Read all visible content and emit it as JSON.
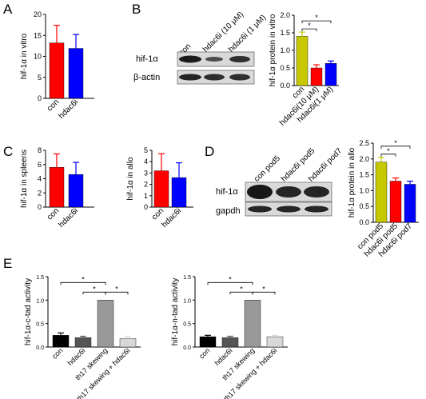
{
  "panels": {
    "A": "A",
    "B": "B",
    "C": "C",
    "D": "D",
    "E": "E"
  },
  "chart_data": [
    {
      "id": "A",
      "type": "bar",
      "categories": [
        "con",
        "hdac6i"
      ],
      "values": [
        13.2,
        11.9
      ],
      "errors": [
        4.2,
        3.3
      ],
      "ylabel": "hif-1α in vitro",
      "ylim": [
        0,
        20
      ],
      "yticks": [
        "0",
        "5",
        "10",
        "15",
        "20"
      ],
      "colors": [
        "#ff0000",
        "#0000ff"
      ]
    },
    {
      "id": "B",
      "type": "bar",
      "categories": [
        "con",
        "hdac6i(10 μM)",
        "hdac6i(1 μM)"
      ],
      "values": [
        1.4,
        0.5,
        0.63
      ],
      "errors": [
        0.12,
        0.09,
        0.07
      ],
      "ylabel": "hif-1α protein in vitro",
      "ylim": [
        0,
        2.0
      ],
      "yticks": [
        "0.0",
        "0.5",
        "1.0",
        "1.5",
        "2.0"
      ],
      "colors": [
        "#c8c800",
        "#ff0000",
        "#0000ff"
      ],
      "significance": [
        "*",
        "*"
      ]
    },
    {
      "id": "C1",
      "type": "bar",
      "categories": [
        "con",
        "hdac6i"
      ],
      "values": [
        5.6,
        4.6
      ],
      "errors": [
        1.9,
        1.7
      ],
      "ylabel": "hif-1α in spleens",
      "ylim": [
        0,
        8
      ],
      "yticks": [
        "0",
        "2",
        "4",
        "6",
        "8"
      ],
      "colors": [
        "#ff0000",
        "#0000ff"
      ]
    },
    {
      "id": "C2",
      "type": "bar",
      "categories": [
        "con",
        "hdac6i"
      ],
      "values": [
        3.2,
        2.6
      ],
      "errors": [
        1.5,
        1.3
      ],
      "ylabel": "hif-1α in allo",
      "ylim": [
        0,
        5
      ],
      "yticks": [
        "0",
        "1",
        "2",
        "3",
        "4",
        "5"
      ],
      "colors": [
        "#ff0000",
        "#0000ff"
      ]
    },
    {
      "id": "D",
      "type": "bar",
      "categories": [
        "con pod5",
        "hdac6i pod5",
        "hdac6i pod7"
      ],
      "values": [
        1.9,
        1.3,
        1.2
      ],
      "errors": [
        0.15,
        0.1,
        0.1
      ],
      "ylabel": "hif-1α protein in allo",
      "ylim": [
        0,
        2.5
      ],
      "yticks": [
        "0.0",
        "0.5",
        "1.0",
        "1.5",
        "2.0",
        "2.5"
      ],
      "colors": [
        "#c8c800",
        "#ff0000",
        "#0000ff"
      ],
      "significance": [
        "*",
        "*"
      ]
    },
    {
      "id": "E1",
      "type": "bar",
      "categories": [
        "con",
        "hdac6i",
        "th17 skewing",
        "th17 skewing + hdac6i"
      ],
      "values": [
        0.25,
        0.2,
        1.0,
        0.18
      ],
      "errors": [
        0.05,
        0.03,
        0.0,
        0.05
      ],
      "ylabel": "hif-1α-c-tad activity",
      "ylim": [
        0,
        1.5
      ],
      "yticks": [
        "0.0",
        "0.5",
        "1.0",
        "1.5"
      ],
      "colors": [
        "#000000",
        "#555555",
        "#999999",
        "#d8d8d8"
      ],
      "significance": [
        "*",
        "*",
        "*"
      ]
    },
    {
      "id": "E2",
      "type": "bar",
      "categories": [
        "con",
        "hdac6i",
        "th17 skewing",
        "th17 skewing + hdac6i"
      ],
      "values": [
        0.22,
        0.2,
        1.0,
        0.22
      ],
      "errors": [
        0.03,
        0.03,
        0.0,
        0.03
      ],
      "ylabel": "hif-1α-n-tad activity",
      "ylim": [
        0,
        1.5
      ],
      "yticks": [
        "0.0",
        "0.5",
        "1.0",
        "1.5"
      ],
      "colors": [
        "#000000",
        "#555555",
        "#999999",
        "#d8d8d8"
      ],
      "significance": [
        "*",
        "*",
        "*"
      ]
    }
  ],
  "blots": {
    "B": {
      "lanes": [
        "con",
        "hdac6i (10 μM)",
        "hdac6i (1 μM)"
      ],
      "rows": [
        "hif-1α",
        "β-actin"
      ]
    },
    "D": {
      "lanes": [
        "con pod5",
        "hdac6i pod5",
        "hdac6i pod7"
      ],
      "rows": [
        "hif-1α",
        "gapdh"
      ]
    }
  }
}
